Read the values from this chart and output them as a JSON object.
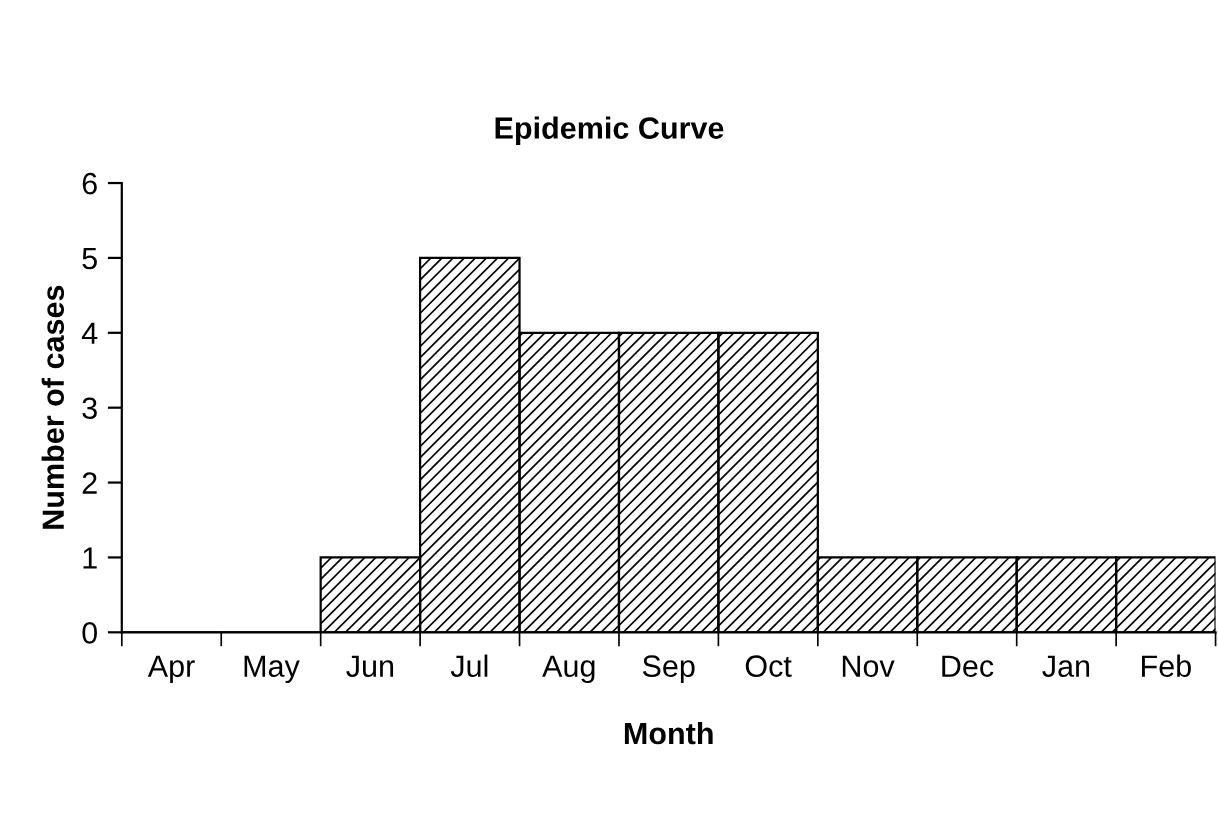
{
  "chart_data": {
    "type": "bar",
    "title": "Epidemic Curve",
    "xlabel": "Month",
    "ylabel": "Number of cases",
    "categories": [
      "Apr",
      "May",
      "Jun",
      "Jul",
      "Aug",
      "Sep",
      "Oct",
      "Nov",
      "Dec",
      "Jan",
      "Feb"
    ],
    "values": [
      0,
      0,
      1,
      5,
      4,
      4,
      4,
      1,
      1,
      1,
      1
    ],
    "color": "#000000",
    "ylim": [
      0,
      6
    ],
    "yticks": [
      0,
      1,
      2,
      3,
      4,
      5,
      6
    ],
    "grid": false
  }
}
